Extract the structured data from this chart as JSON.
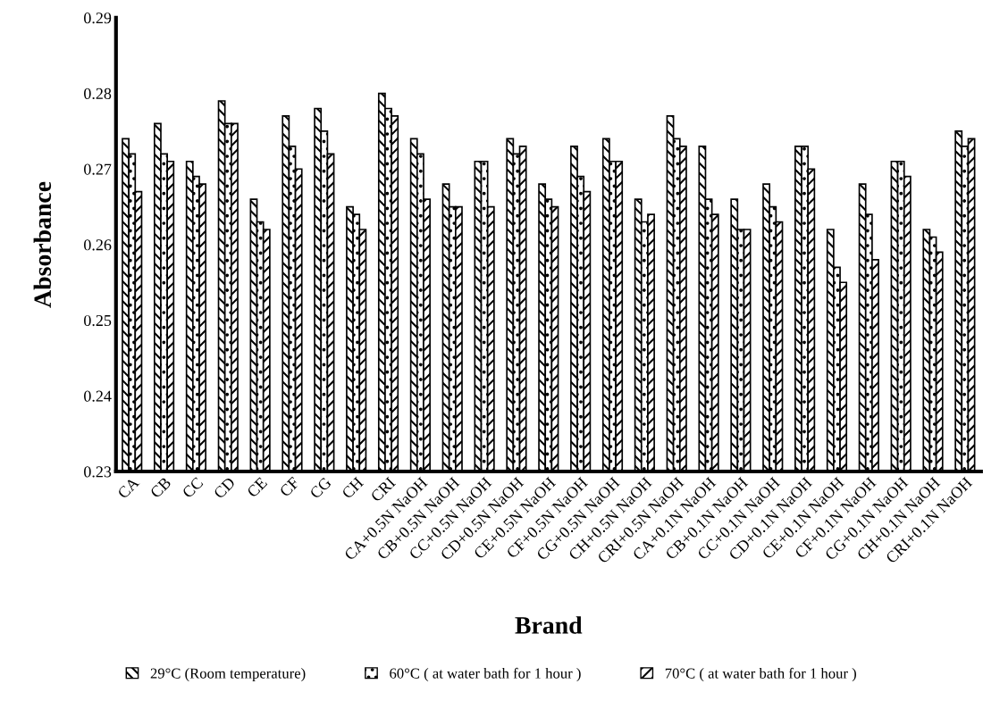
{
  "chart_data": {
    "type": "bar",
    "xlabel": "Brand",
    "ylabel": "Absorbance",
    "categories": [
      "CA",
      "CB",
      "CC",
      "CD",
      "CE",
      "CF",
      "CG",
      "CH",
      "CRI",
      "CA+0.5N NaOH",
      "CB+0.5N NaOH",
      "CC+0.5N NaOH",
      "CD+0.5N NaOH",
      "CE+0.5N NaOH",
      "CF+0.5N NaOH",
      "CG+0.5N NaOH",
      "CH+0.5N NaOH",
      "CRI+0.5N NaOH",
      "CA+0.1N NaOH",
      "CB+0.1N NaOH",
      "CC+0.1N NaOH",
      "CD+0.1N NaOH",
      "CE+0.1N NaOH",
      "CF+0.1N NaOH",
      "CG+0.1N NaOH",
      "CH+0.1N NaOH",
      "CRI+0.1N NaOH"
    ],
    "series": [
      {
        "name": "29°C (Room temperature)",
        "color": "#000000",
        "values": [
          0.274,
          0.276,
          0.271,
          0.279,
          0.266,
          0.277,
          0.278,
          0.265,
          0.28,
          0.274,
          0.268,
          0.271,
          0.274,
          0.268,
          0.273,
          0.274,
          0.266,
          0.277,
          0.273,
          0.266,
          0.268,
          0.273,
          0.262,
          0.268,
          0.271,
          0.262,
          0.275
        ]
      },
      {
        "name": "60°C ( at water bath for 1 hour )",
        "color": "#000000",
        "values": [
          0.272,
          0.272,
          0.269,
          0.276,
          0.263,
          0.273,
          0.275,
          0.264,
          0.278,
          0.272,
          0.265,
          0.271,
          0.272,
          0.266,
          0.269,
          0.271,
          0.263,
          0.274,
          0.266,
          0.262,
          0.265,
          0.273,
          0.257,
          0.264,
          0.271,
          0.261,
          0.273
        ]
      },
      {
        "name": "70°C ( at water bath for 1 hour )",
        "color": "#000000",
        "values": [
          0.267,
          0.271,
          0.268,
          0.276,
          0.262,
          0.27,
          0.272,
          0.262,
          0.277,
          0.266,
          0.265,
          0.265,
          0.273,
          0.265,
          0.267,
          0.271,
          0.264,
          0.273,
          0.264,
          0.262,
          0.263,
          0.27,
          0.255,
          0.258,
          0.269,
          0.259,
          0.274
        ]
      }
    ],
    "ylim": [
      0.23,
      0.29
    ],
    "yticks": [
      0.23,
      0.24,
      0.25,
      0.26,
      0.27,
      0.28,
      0.29
    ],
    "grid": false,
    "legend": "bottom"
  }
}
